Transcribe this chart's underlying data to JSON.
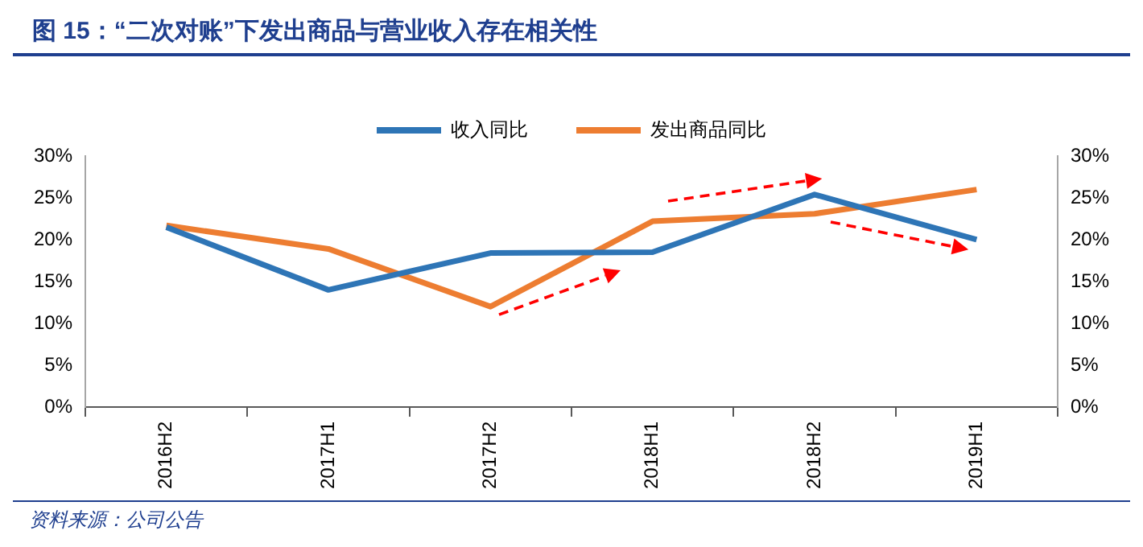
{
  "chart_data": {
    "type": "line",
    "title": "图 15：“二次对账”下发出商品与营业收入存在相关性",
    "categories": [
      "2016H2",
      "2017H1",
      "2017H2",
      "2018H1",
      "2018H2",
      "2019H1"
    ],
    "series": [
      {
        "name": "收入同比",
        "color": "#2e75b6",
        "values": [
          21.5,
          14,
          18.4,
          18.5,
          25.4,
          20
        ]
      },
      {
        "name": "发出商品同比",
        "color": "#ed7d31",
        "values": [
          21.7,
          18.9,
          12,
          22.2,
          23.1,
          26
        ]
      }
    ],
    "ylim": [
      0,
      30
    ],
    "yticks": [
      {
        "value": 0,
        "label": "0%"
      },
      {
        "value": 5,
        "label": "5%"
      },
      {
        "value": 10,
        "label": "10%"
      },
      {
        "value": 15,
        "label": "15%"
      },
      {
        "value": 20,
        "label": "20%"
      },
      {
        "value": 25,
        "label": "25%"
      },
      {
        "value": 30,
        "label": "30%"
      }
    ],
    "y2lim": [
      0,
      30
    ],
    "y2ticks": [
      {
        "value": 0,
        "label": "0%"
      },
      {
        "value": 5,
        "label": "5%"
      },
      {
        "value": 10,
        "label": "10%"
      },
      {
        "value": 15,
        "label": "15%"
      },
      {
        "value": 20,
        "label": "20%"
      },
      {
        "value": 25,
        "label": "25%"
      },
      {
        "value": 30,
        "label": "30%"
      }
    ],
    "grid": false,
    "legend": "top",
    "marker": "none",
    "line_style": "solid",
    "annotations": [
      "资料来源：公司公告"
    ]
  }
}
